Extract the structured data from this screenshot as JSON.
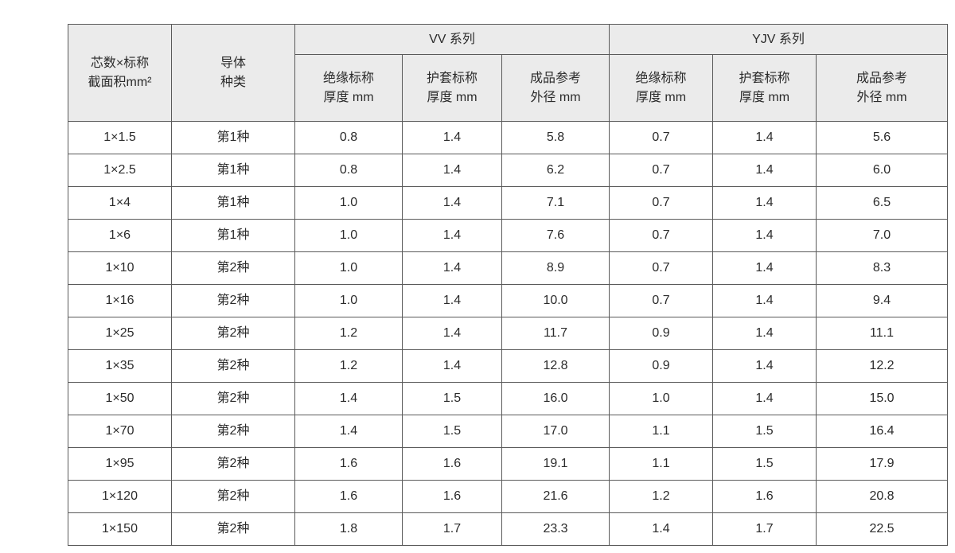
{
  "colors": {
    "header_bg": "#ebebeb",
    "border": "#5a5a5a",
    "text": "#2b2b2b",
    "page_bg": "#ffffff"
  },
  "table": {
    "headers": {
      "core_area": "芯数×标称\n截面积mm²",
      "conductor_type": "导体\n种类",
      "vv_series": "VV 系列",
      "yjv_series": "YJV 系列",
      "sub": [
        "绝缘标称\n厚度 mm",
        "护套标称\n厚度 mm",
        "成品参考\n外径 mm",
        "绝缘标称\n厚度 mm",
        "护套标称\n厚度 mm",
        "成品参考\n外径 mm"
      ]
    },
    "rows": [
      [
        "1×1.5",
        "第1种",
        "0.8",
        "1.4",
        "5.8",
        "0.7",
        "1.4",
        "5.6"
      ],
      [
        "1×2.5",
        "第1种",
        "0.8",
        "1.4",
        "6.2",
        "0.7",
        "1.4",
        "6.0"
      ],
      [
        "1×4",
        "第1种",
        "1.0",
        "1.4",
        "7.1",
        "0.7",
        "1.4",
        "6.5"
      ],
      [
        "1×6",
        "第1种",
        "1.0",
        "1.4",
        "7.6",
        "0.7",
        "1.4",
        "7.0"
      ],
      [
        "1×10",
        "第2种",
        "1.0",
        "1.4",
        "8.9",
        "0.7",
        "1.4",
        "8.3"
      ],
      [
        "1×16",
        "第2种",
        "1.0",
        "1.4",
        "10.0",
        "0.7",
        "1.4",
        "9.4"
      ],
      [
        "1×25",
        "第2种",
        "1.2",
        "1.4",
        "11.7",
        "0.9",
        "1.4",
        "11.1"
      ],
      [
        "1×35",
        "第2种",
        "1.2",
        "1.4",
        "12.8",
        "0.9",
        "1.4",
        "12.2"
      ],
      [
        "1×50",
        "第2种",
        "1.4",
        "1.5",
        "16.0",
        "1.0",
        "1.4",
        "15.0"
      ],
      [
        "1×70",
        "第2种",
        "1.4",
        "1.5",
        "17.0",
        "1.1",
        "1.5",
        "16.4"
      ],
      [
        "1×95",
        "第2种",
        "1.6",
        "1.6",
        "19.1",
        "1.1",
        "1.5",
        "17.9"
      ],
      [
        "1×120",
        "第2种",
        "1.6",
        "1.6",
        "21.6",
        "1.2",
        "1.6",
        "20.8"
      ],
      [
        "1×150",
        "第2种",
        "1.8",
        "1.7",
        "23.3",
        "1.4",
        "1.7",
        "22.5"
      ]
    ]
  }
}
